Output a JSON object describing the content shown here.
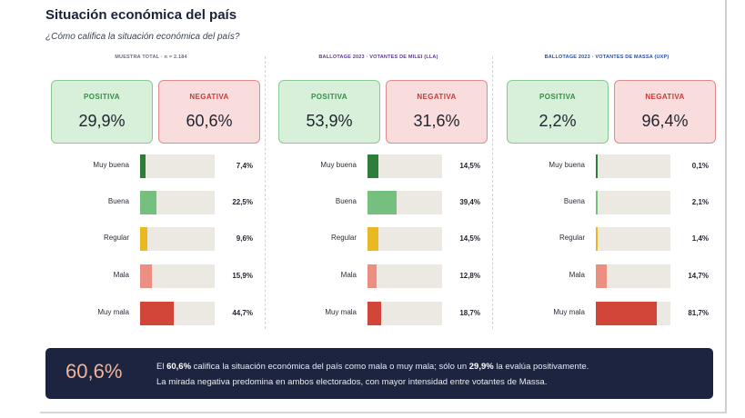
{
  "title": "Situación económica del país",
  "subtitle": "¿Cómo califica la situación económica del país?",
  "categories": [
    "Muy buena",
    "Buena",
    "Regular",
    "Mala",
    "Muy mala"
  ],
  "category_colors": [
    "#2f7d3a",
    "#76c07f",
    "#e8b923",
    "#ec8f83",
    "#d2463a"
  ],
  "card_labels": {
    "positive": "POSITIVA",
    "negative": "NEGATIVA"
  },
  "chart_data": [
    {
      "type": "bar",
      "title": "MUESTRA TOTAL · n = 2.184",
      "header_color": "#6b6f78",
      "positive": "29,9%",
      "negative": "60,6%",
      "categories": [
        "Muy buena",
        "Buena",
        "Regular",
        "Mala",
        "Muy mala"
      ],
      "values": [
        7.4,
        22.5,
        9.6,
        15.9,
        44.7
      ],
      "value_labels": [
        "7,4%",
        "22,5%",
        "9,6%",
        "15,9%",
        "44,7%"
      ]
    },
    {
      "type": "bar",
      "title": "BALLOTAGE 2023 · VOTANTES DE MILEI (LLA)",
      "header_color": "#5b3a8e",
      "positive": "53,9%",
      "negative": "31,6%",
      "categories": [
        "Muy buena",
        "Buena",
        "Regular",
        "Mala",
        "Muy mala"
      ],
      "values": [
        14.5,
        39.4,
        14.5,
        12.8,
        18.7
      ],
      "value_labels": [
        "14,5%",
        "39,4%",
        "14,5%",
        "12,8%",
        "18,7%"
      ]
    },
    {
      "type": "bar",
      "title": "BALLOTAGE 2023 · VOTANTES DE MASSA (UXP)",
      "header_color": "#2c4f9e",
      "positive": "2,2%",
      "negative": "96,4%",
      "categories": [
        "Muy buena",
        "Buena",
        "Regular",
        "Mala",
        "Muy mala"
      ],
      "values": [
        0.1,
        2.1,
        1.4,
        14.7,
        81.7
      ],
      "value_labels": [
        "0,1%",
        "2,1%",
        "1,4%",
        "14,7%",
        "81,7%"
      ]
    }
  ],
  "banner": {
    "big_value": "60,6%",
    "line1_parts": [
      "El ",
      "60,6%",
      " califica la situación económica del país como mala o muy mala; sólo un ",
      "29,9%",
      " la evalúa positivamente."
    ],
    "line2": "La mirada negativa predomina en ambos electorados, con mayor intensidad entre votantes de Massa."
  }
}
